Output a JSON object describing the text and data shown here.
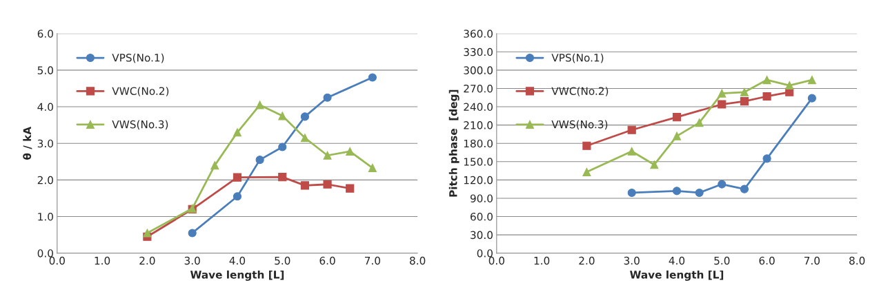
{
  "chart_data": [
    {
      "type": "line",
      "xlabel": "Wave length [L]",
      "ylabel": "θ / kA",
      "xlim": [
        0,
        8
      ],
      "xticks": [
        {
          "value": 0,
          "label": "0.0"
        },
        {
          "value": 1,
          "label": "1.0"
        },
        {
          "value": 2,
          "label": "2.0"
        },
        {
          "value": 3,
          "label": "3.0"
        },
        {
          "value": 4,
          "label": "4.0"
        },
        {
          "value": 5,
          "label": "5.0"
        },
        {
          "value": 6,
          "label": "6.0"
        },
        {
          "value": 7,
          "label": "7.0"
        },
        {
          "value": 8,
          "label": "8.0"
        }
      ],
      "ylim": [
        0,
        6
      ],
      "yticks": [
        {
          "value": 0,
          "label": "0.0"
        },
        {
          "value": 1,
          "label": "1.0"
        },
        {
          "value": 2,
          "label": "2.0"
        },
        {
          "value": 3,
          "label": "3.0"
        },
        {
          "value": 4,
          "label": "4.0"
        },
        {
          "value": 5,
          "label": "5.0"
        },
        {
          "value": 6,
          "label": "6.0"
        }
      ],
      "grid": "y",
      "legend": "top left",
      "series": [
        {
          "name": "VPS(No.1)",
          "color": "#4a7ebb",
          "marker": "circle",
          "x": [
            3,
            4,
            4.5,
            5,
            5.5,
            6,
            7
          ],
          "values": [
            0.55,
            1.55,
            2.55,
            2.9,
            3.73,
            4.25,
            4.8
          ]
        },
        {
          "name": "VWC(No.2)",
          "color": "#be4b48",
          "marker": "square",
          "x": [
            2,
            3,
            4,
            5,
            5.5,
            6,
            6.5
          ],
          "values": [
            0.45,
            1.2,
            2.07,
            2.08,
            1.85,
            1.88,
            1.77
          ]
        },
        {
          "name": "VWS(No.3)",
          "color": "#98b954",
          "marker": "triangle",
          "x": [
            2,
            3,
            3.5,
            4,
            4.5,
            5,
            5.5,
            6,
            6.5,
            7
          ],
          "values": [
            0.55,
            1.22,
            2.4,
            3.3,
            4.05,
            3.75,
            3.15,
            2.67,
            2.78,
            2.33
          ]
        }
      ]
    },
    {
      "type": "line",
      "xlabel": "Wave length [L]",
      "ylabel": "Pitch phase  [deg]",
      "xlim": [
        0,
        8
      ],
      "xticks": [
        {
          "value": 0,
          "label": "0.0"
        },
        {
          "value": 1,
          "label": "1.0"
        },
        {
          "value": 2,
          "label": "2.0"
        },
        {
          "value": 3,
          "label": "3.0"
        },
        {
          "value": 4,
          "label": "4.0"
        },
        {
          "value": 5,
          "label": "5.0"
        },
        {
          "value": 6,
          "label": "6.0"
        },
        {
          "value": 7,
          "label": "7.0"
        },
        {
          "value": 8,
          "label": "8.0"
        }
      ],
      "ylim": [
        0,
        360
      ],
      "yticks": [
        {
          "value": 0,
          "label": "0.0"
        },
        {
          "value": 30,
          "label": "30.0"
        },
        {
          "value": 60,
          "label": "60.0"
        },
        {
          "value": 90,
          "label": "90.0"
        },
        {
          "value": 120,
          "label": "120.0"
        },
        {
          "value": 150,
          "label": "150.0"
        },
        {
          "value": 180,
          "label": "180.0"
        },
        {
          "value": 210,
          "label": "210.0"
        },
        {
          "value": 240,
          "label": "240.0"
        },
        {
          "value": 270,
          "label": "270.0"
        },
        {
          "value": 300,
          "label": "300.0"
        },
        {
          "value": 330,
          "label": "330.0"
        },
        {
          "value": 360,
          "label": "360.0"
        }
      ],
      "grid": "y",
      "legend": "top left",
      "series": [
        {
          "name": "VPS(No.1)",
          "color": "#4a7ebb",
          "marker": "circle",
          "x": [
            3,
            4,
            4.5,
            5,
            5.5,
            6,
            7
          ],
          "values": [
            99,
            102,
            99,
            113,
            105,
            155,
            254
          ]
        },
        {
          "name": "VWC(No.2)",
          "color": "#be4b48",
          "marker": "square",
          "x": [
            2,
            3,
            4,
            5,
            5.5,
            6,
            6.5
          ],
          "values": [
            176,
            202,
            223,
            244,
            249,
            257,
            264
          ]
        },
        {
          "name": "VWS(No.3)",
          "color": "#98b954",
          "marker": "triangle",
          "x": [
            2,
            3,
            3.5,
            4,
            4.5,
            5,
            5.5,
            6,
            6.5,
            7
          ],
          "values": [
            133,
            167,
            145,
            192,
            214,
            262,
            264,
            284,
            275,
            284
          ]
        }
      ]
    }
  ]
}
